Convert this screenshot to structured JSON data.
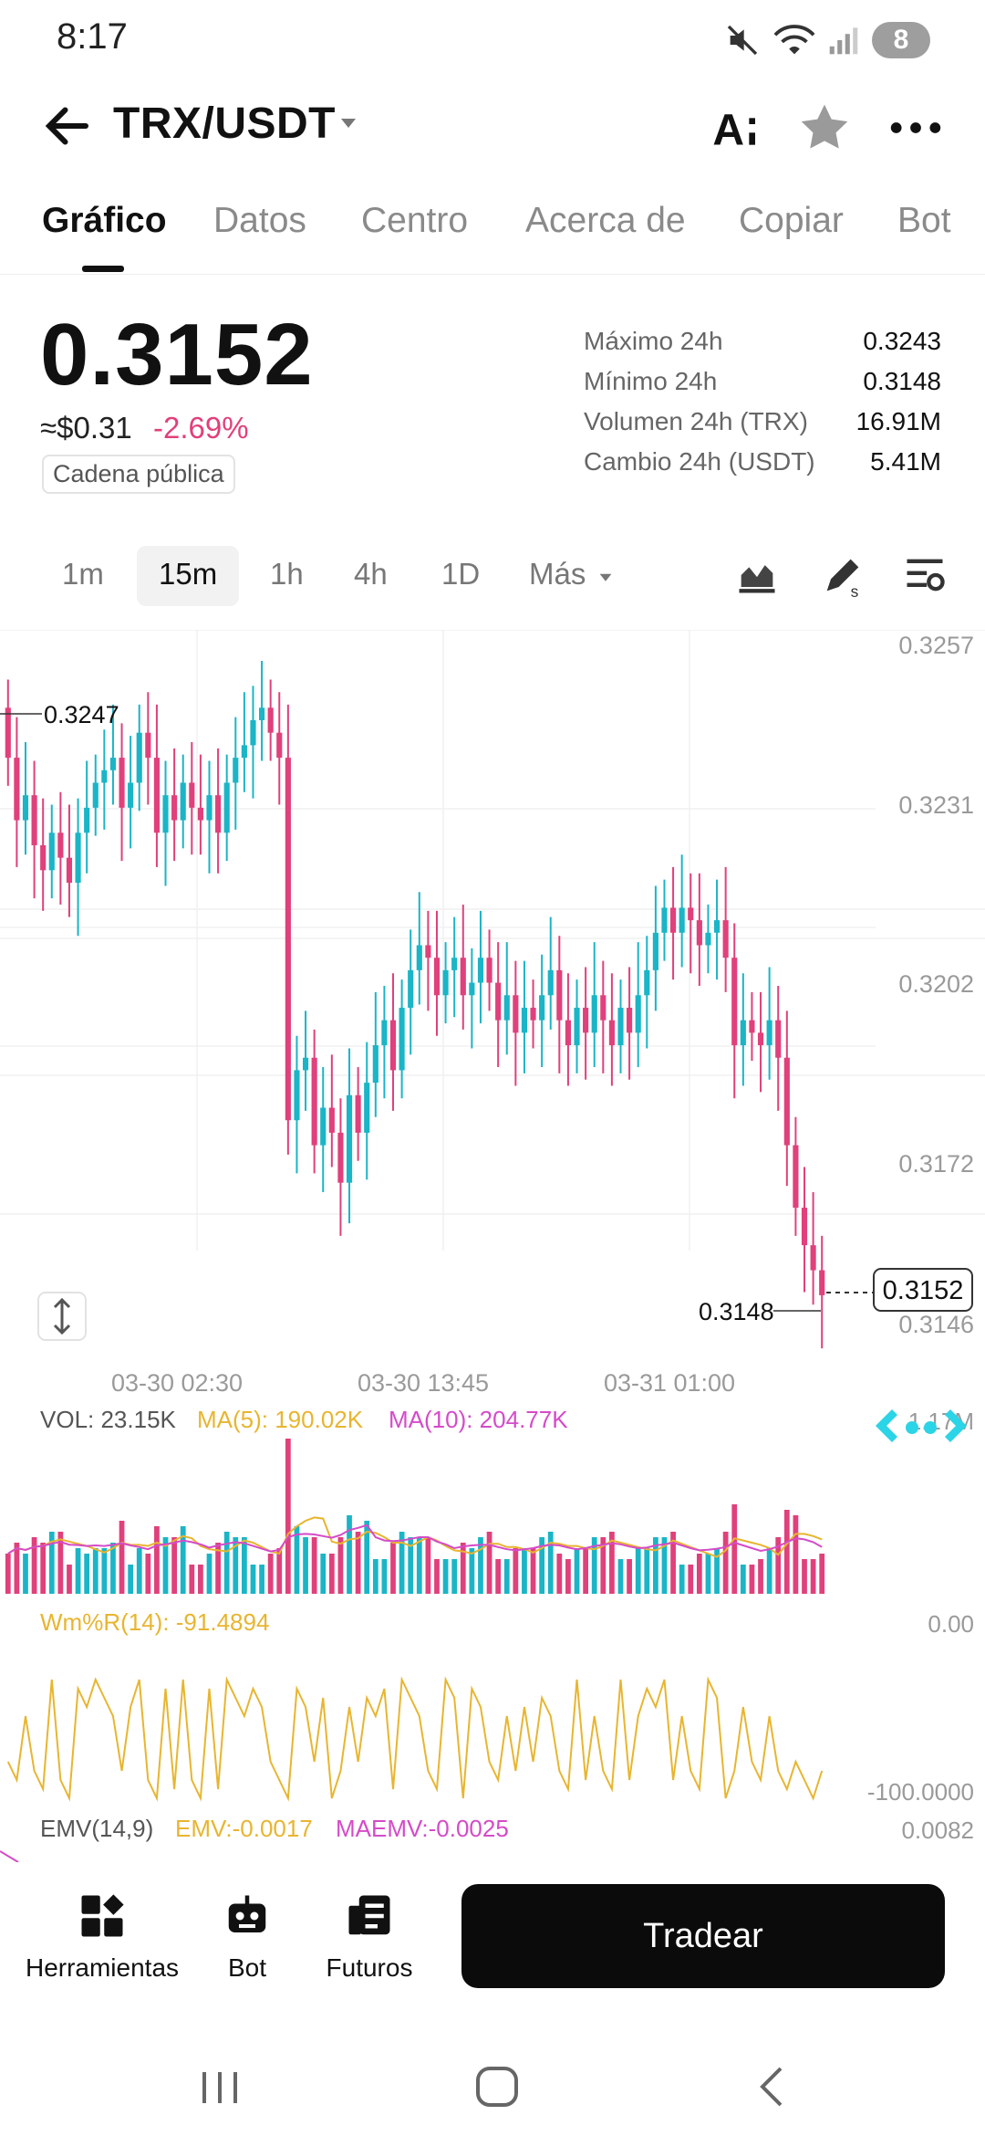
{
  "status_bar": {
    "time": "8:17",
    "battery": "8"
  },
  "header": {
    "title": "TRX/USDT"
  },
  "tabs": [
    "Gráfico",
    "Datos",
    "Centro",
    "Acerca de",
    "Copiar",
    "Bot"
  ],
  "price": {
    "last": "0.3152",
    "usd": "≈$0.31",
    "change": "-2.69%",
    "chain_badge": "Cadena pública"
  },
  "stats": [
    {
      "label": "Máximo 24h",
      "value": "0.3243"
    },
    {
      "label": "Mínimo 24h",
      "value": "0.3148"
    },
    {
      "label": "Volumen 24h (TRX)",
      "value": "16.91M"
    },
    {
      "label": "Cambio 24h (USDT)",
      "value": "5.41M"
    }
  ],
  "intervals": [
    "1m",
    "15m",
    "1h",
    "4h",
    "1D",
    "Más"
  ],
  "selected_interval": "15m",
  "chart": {
    "y_ticks": [
      "0.3257",
      "0.3231",
      "0.3202",
      "0.3172",
      "0.3146"
    ],
    "x_ticks": [
      "03-30 02:30",
      "03-30 13:45",
      "03-31 01:00"
    ],
    "high_marker": "0.3247",
    "low_marker": "0.3148",
    "current_marker": "0.3152",
    "vol_axis": "1.17M",
    "indicators": {
      "vol": "VOL: 23.15K",
      "ma5": "MA(5): 190.02K",
      "ma10": "MA(10): 204.77K",
      "wr": "Wm%R(14): -91.4894",
      "wr_top": "0.00",
      "wr_bottom": "-100.0000",
      "emv": "EMV(14,9)",
      "emv_val": "EMV:-0.0017",
      "maemv_val": "MAEMV:-0.0025",
      "emv_axis": "0.0082"
    },
    "colors": {
      "up": "#1ab5c7",
      "down": "#e0407b",
      "ma5": "#e8b530",
      "ma10": "#d54bc9"
    }
  },
  "chart_data": {
    "type": "candlestick",
    "y_range": [
      0.3146,
      0.3257
    ],
    "y_ticks": [
      0.3257,
      0.3231,
      0.3202,
      0.3172,
      0.3146
    ],
    "x_ticks": [
      "03-30 02:30",
      "03-30 13:45",
      "03-31 01:00"
    ],
    "marked_high": 0.3247,
    "marked_low": 0.3148,
    "last_price": 0.3152,
    "close_approx": [
      0.3238,
      0.3228,
      0.3232,
      0.3224,
      0.322,
      0.3226,
      0.3222,
      0.3218,
      0.3226,
      0.323,
      0.3234,
      0.3236,
      0.3238,
      0.323,
      0.3234,
      0.3242,
      0.3238,
      0.3226,
      0.3232,
      0.3228,
      0.3234,
      0.323,
      0.3228,
      0.3232,
      0.3226,
      0.3234,
      0.3238,
      0.324,
      0.3244,
      0.3246,
      0.3242,
      0.3238,
      0.318,
      0.3188,
      0.319,
      0.3176,
      0.3182,
      0.3178,
      0.317,
      0.3184,
      0.3178,
      0.3186,
      0.3192,
      0.3196,
      0.3188,
      0.3198,
      0.3204,
      0.3208,
      0.3206,
      0.32,
      0.3204,
      0.3206,
      0.32,
      0.3202,
      0.3206,
      0.3202,
      0.3196,
      0.32,
      0.3194,
      0.3198,
      0.3196,
      0.32,
      0.3204,
      0.3196,
      0.3192,
      0.3198,
      0.3194,
      0.32,
      0.3196,
      0.3192,
      0.3198,
      0.3194,
      0.32,
      0.3204,
      0.321,
      0.3214,
      0.321,
      0.3214,
      0.3212,
      0.3208,
      0.321,
      0.3212,
      0.3206,
      0.3192,
      0.3196,
      0.3194,
      0.3192,
      0.3196,
      0.319,
      0.3176,
      0.3166,
      0.316,
      0.3156,
      0.3152
    ]
  }
}
